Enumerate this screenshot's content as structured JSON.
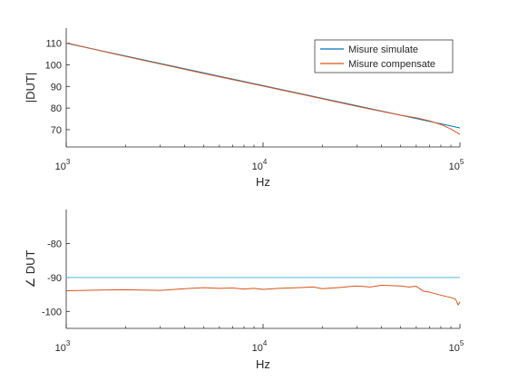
{
  "chart_data": [
    {
      "type": "line",
      "title": "",
      "xlabel": "Hz",
      "ylabel": "|DUT|",
      "xscale": "log",
      "xlim": [
        1000,
        100000
      ],
      "ylim": [
        62,
        117
      ],
      "yticks": [
        70,
        80,
        90,
        100,
        110
      ],
      "xticks": [
        {
          "base": "10",
          "exp": "3",
          "value": 1000
        },
        {
          "base": "10",
          "exp": "4",
          "value": 10000
        },
        {
          "base": "10",
          "exp": "5",
          "value": 100000
        }
      ],
      "grid": false,
      "legend": "top-right",
      "series": [
        {
          "name": "Misure simulate",
          "color": "#0072BD",
          "x": [
            1000,
            100000
          ],
          "y": [
            110.0,
            70.8
          ]
        },
        {
          "name": "Misure compensate",
          "color": "#D95319",
          "x": [
            1000,
            2000,
            5000,
            10000,
            20000,
            30000,
            50000,
            60000,
            70000,
            80000,
            90000,
            100000
          ],
          "y": [
            110.2,
            103.9,
            96.0,
            90.2,
            84.3,
            80.8,
            76.7,
            75.5,
            74.1,
            72.4,
            70.3,
            67.8
          ]
        }
      ]
    },
    {
      "type": "line",
      "title": "",
      "xlabel": "Hz",
      "ylabel": "∠ DUT",
      "xscale": "log",
      "xlim": [
        1000,
        100000
      ],
      "ylim": [
        -105,
        -70
      ],
      "yticks": [
        -80,
        -90,
        -100
      ],
      "xticks": [
        {
          "base": "10",
          "exp": "3",
          "value": 1000
        },
        {
          "base": "10",
          "exp": "4",
          "value": 10000
        },
        {
          "base": "10",
          "exp": "5",
          "value": 100000
        }
      ],
      "grid": false,
      "legend": "none",
      "series": [
        {
          "color": "#4DBEEE",
          "x": [
            1000,
            100000
          ],
          "y": [
            -90,
            -90
          ]
        },
        {
          "color": "#D95319",
          "x": [
            1000,
            1500,
            2000,
            3000,
            4000,
            5000,
            6000,
            7000,
            8000,
            9000,
            10000,
            12000,
            15000,
            18000,
            20000,
            25000,
            30000,
            35000,
            40000,
            45000,
            50000,
            55000,
            60000,
            65000,
            70000,
            75000,
            80000,
            85000,
            90000,
            95000,
            98000,
            100000
          ],
          "y": [
            -93.9,
            -93.7,
            -93.6,
            -93.8,
            -93.3,
            -93.0,
            -93.2,
            -93.1,
            -93.4,
            -93.2,
            -93.5,
            -93.2,
            -93.0,
            -92.8,
            -93.3,
            -92.9,
            -92.5,
            -92.8,
            -92.3,
            -92.4,
            -92.5,
            -92.8,
            -92.6,
            -94.0,
            -94.3,
            -94.8,
            -95.2,
            -95.6,
            -95.9,
            -96.4,
            -98.1,
            -97.2
          ]
        }
      ]
    }
  ]
}
